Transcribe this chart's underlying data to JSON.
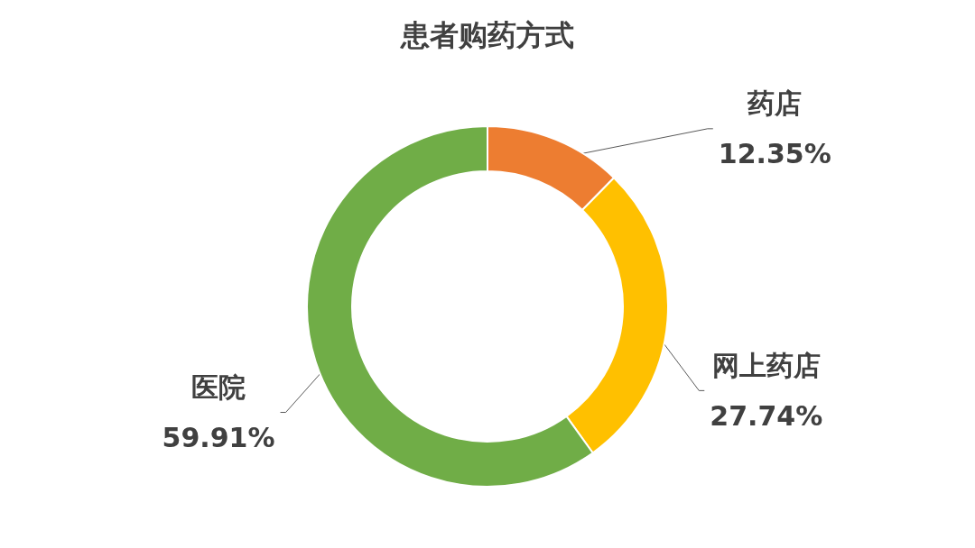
{
  "chart_data": {
    "type": "donut",
    "title": "患者购药方式",
    "categories": [
      "药店",
      "网上药店",
      "医院"
    ],
    "values": [
      12.35,
      27.74,
      59.91
    ],
    "value_labels": [
      "12.35%",
      "27.74%",
      "59.91%"
    ],
    "colors": [
      "#ed7d31",
      "#ffc000",
      "#70ad47"
    ],
    "legend": false
  }
}
